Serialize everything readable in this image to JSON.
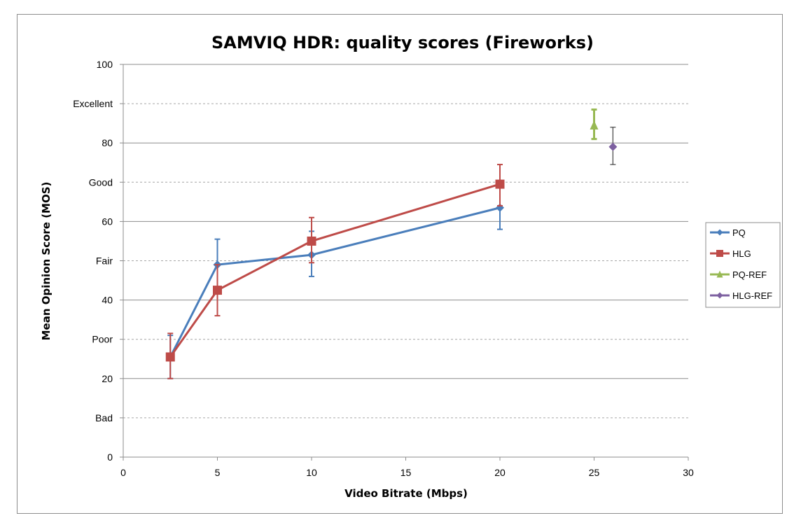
{
  "chart_data": {
    "type": "line",
    "title": "SAMVIQ HDR: quality scores (Fireworks)",
    "xlabel": "Video Bitrate (Mbps)",
    "ylabel": "Mean Opinion Score (MOS)",
    "xlim": [
      0,
      30
    ],
    "ylim": [
      0,
      100
    ],
    "x_ticks": [
      0,
      5,
      10,
      15,
      20,
      25,
      30
    ],
    "y_ticks": [
      {
        "value": 0,
        "label": "0",
        "grid": "solid"
      },
      {
        "value": 10,
        "label": "Bad",
        "grid": "dashed"
      },
      {
        "value": 20,
        "label": "20",
        "grid": "solid"
      },
      {
        "value": 30,
        "label": "Poor",
        "grid": "dashed"
      },
      {
        "value": 40,
        "label": "40",
        "grid": "solid"
      },
      {
        "value": 50,
        "label": "Fair",
        "grid": "dashed"
      },
      {
        "value": 60,
        "label": "60",
        "grid": "solid"
      },
      {
        "value": 70,
        "label": "Good",
        "grid": "dashed"
      },
      {
        "value": 80,
        "label": "80",
        "grid": "solid"
      },
      {
        "value": 90,
        "label": "Excellent",
        "grid": "dashed"
      },
      {
        "value": 100,
        "label": "100",
        "grid": "solid"
      }
    ],
    "legend_position": "right",
    "series": [
      {
        "name": "PQ",
        "color": "#4a7ebb",
        "marker": "diamond",
        "connected": true,
        "points": [
          {
            "x": 2.5,
            "y": 25.5,
            "err_low": 20,
            "err_high": 31
          },
          {
            "x": 5,
            "y": 49,
            "err_low": 42.5,
            "err_high": 55.5
          },
          {
            "x": 10,
            "y": 51.5,
            "err_low": 46,
            "err_high": 57.5
          },
          {
            "x": 20,
            "y": 63.5,
            "err_low": 58,
            "err_high": 69.5
          }
        ]
      },
      {
        "name": "HLG",
        "color": "#be4b48",
        "marker": "square",
        "connected": true,
        "points": [
          {
            "x": 2.5,
            "y": 25.5,
            "err_low": 20,
            "err_high": 31.5
          },
          {
            "x": 5,
            "y": 42.5,
            "err_low": 36,
            "err_high": 49
          },
          {
            "x": 10,
            "y": 55,
            "err_low": 49.5,
            "err_high": 61
          },
          {
            "x": 20,
            "y": 69.5,
            "err_low": 64,
            "err_high": 74.5
          }
        ]
      },
      {
        "name": "PQ-REF",
        "color": "#98b954",
        "marker": "triangle",
        "connected": false,
        "points": [
          {
            "x": 25,
            "y": 84.5,
            "err_low": 81,
            "err_high": 88.5
          }
        ]
      },
      {
        "name": "HLG-REF",
        "color": "#7d60a0",
        "marker": "diamond",
        "connected": false,
        "points": [
          {
            "x": 26,
            "y": 79,
            "err_low": 74.5,
            "err_high": 84
          }
        ]
      }
    ]
  }
}
